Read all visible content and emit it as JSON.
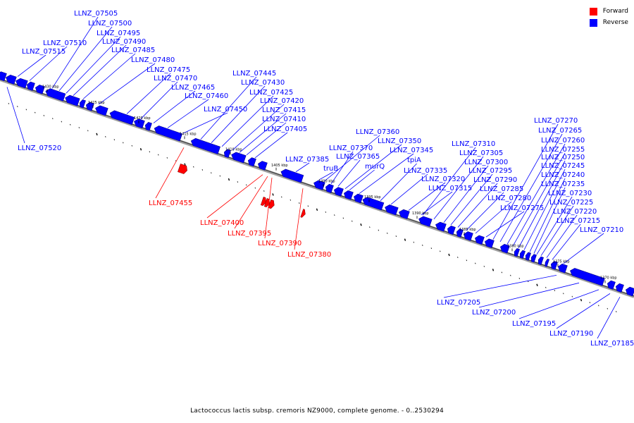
{
  "legend": {
    "items": [
      {
        "label": "Forward",
        "color": "#ff0000"
      },
      {
        "label": "Reverse",
        "color": "#0000ff"
      }
    ]
  },
  "caption": "Lactococcus lactis subsp. cremoris NZ9000, complete genome. - 0..2530294",
  "colors": {
    "forward": "#ff0000",
    "reverse": "#0000ff",
    "backbone": "#808080"
  },
  "ruler": [
    "1430 kbp",
    "1425 kbp",
    "1420 kbp",
    "1415 kbp",
    "1410 kbp",
    "1405 kbp",
    "1400 kbp",
    "1395 kbp",
    "1390 kbp",
    "1385 kbp",
    "1380 kbp",
    "1375 kbp",
    "1370 kbp"
  ],
  "genes": {
    "reverse": [
      "LLNZ_07505",
      "LLNZ_07500",
      "LLNZ_07495",
      "LLNZ_07490",
      "LLNZ_07510",
      "LLNZ_07485",
      "LLNZ_07515",
      "LLNZ_07480",
      "LLNZ_07475",
      "LLNZ_07470",
      "LLNZ_07465",
      "LLNZ_07460",
      "LLNZ_07445",
      "LLNZ_07430",
      "LLNZ_07425",
      "LLNZ_07420",
      "LLNZ_07450",
      "LLNZ_07415",
      "LLNZ_07410",
      "LLNZ_07405",
      "LLNZ_07520",
      "LLNZ_07360",
      "LLNZ_07350",
      "LLNZ_07370",
      "LLNZ_07345",
      "LLNZ_07385",
      "LLNZ_07365",
      "truB",
      "murQ",
      "tpiA",
      "LLNZ_07335",
      "LLNZ_07320",
      "LLNZ_07315",
      "LLNZ_07310",
      "LLNZ_07305",
      "LLNZ_07300",
      "LLNZ_07295",
      "LLNZ_07290",
      "LLNZ_07285",
      "LLNZ_07280",
      "LLNZ_07275",
      "LLNZ_07270",
      "LLNZ_07265",
      "LLNZ_07260",
      "LLNZ_07255",
      "LLNZ_07250",
      "LLNZ_07245",
      "LLNZ_07240",
      "LLNZ_07235",
      "LLNZ_07230",
      "LLNZ_07225",
      "LLNZ_07220",
      "LLNZ_07215",
      "LLNZ_07210",
      "LLNZ_07205",
      "LLNZ_07200",
      "LLNZ_07195",
      "LLNZ_07190",
      "LLNZ_07185"
    ],
    "forward": [
      "LLNZ_07455",
      "LLNZ_07400",
      "LLNZ_07395",
      "LLNZ_07390",
      "LLNZ_07380"
    ]
  }
}
